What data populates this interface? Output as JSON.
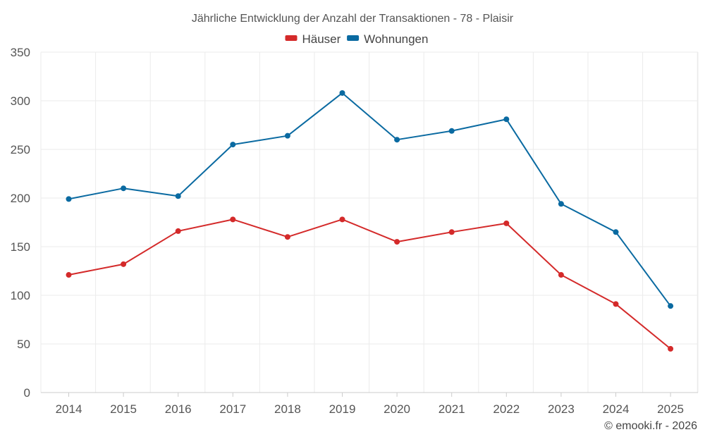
{
  "chart_data": {
    "type": "line",
    "title": "Jährliche Entwicklung der Anzahl der Transaktionen - 78 - Plaisir",
    "categories": [
      "2014",
      "2015",
      "2016",
      "2017",
      "2018",
      "2019",
      "2020",
      "2021",
      "2022",
      "2023",
      "2024",
      "2025"
    ],
    "series": [
      {
        "name": "Häuser",
        "color": "#d42a2a",
        "values": [
          121,
          132,
          166,
          178,
          160,
          178,
          155,
          165,
          174,
          121,
          91,
          45
        ]
      },
      {
        "name": "Wohnungen",
        "color": "#0a6aa1",
        "values": [
          199,
          210,
          202,
          255,
          264,
          308,
          260,
          269,
          281,
          194,
          165,
          89
        ]
      }
    ],
    "ylim": [
      0,
      350
    ],
    "yticks": [
      0,
      50,
      100,
      150,
      200,
      250,
      300,
      350
    ],
    "xlabel": "",
    "ylabel": "",
    "grid": true,
    "legend": "top-center"
  },
  "credit": "© emooki.fr - 2026"
}
